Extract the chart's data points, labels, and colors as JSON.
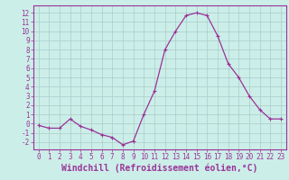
{
  "x": [
    0,
    1,
    2,
    3,
    4,
    5,
    6,
    7,
    8,
    9,
    10,
    11,
    12,
    13,
    14,
    15,
    16,
    17,
    18,
    19,
    20,
    21,
    22,
    23
  ],
  "y": [
    -0.2,
    -0.5,
    -0.5,
    0.5,
    -0.3,
    -0.7,
    -1.2,
    -1.5,
    -2.3,
    -1.9,
    1.0,
    3.5,
    8.0,
    10.0,
    11.7,
    12.0,
    11.7,
    9.5,
    6.5,
    5.0,
    3.0,
    1.5,
    0.5,
    0.5
  ],
  "line_color": "#993399",
  "marker": "+",
  "bg_color": "#cceee8",
  "grid_color": "#aacccc",
  "xlabel": "Windchill (Refroidissement éolien,°C)",
  "xlim": [
    -0.5,
    23.5
  ],
  "ylim": [
    -2.8,
    12.8
  ],
  "yticks": [
    -2,
    -1,
    0,
    1,
    2,
    3,
    4,
    5,
    6,
    7,
    8,
    9,
    10,
    11,
    12
  ],
  "xticks": [
    0,
    1,
    2,
    3,
    4,
    5,
    6,
    7,
    8,
    9,
    10,
    11,
    12,
    13,
    14,
    15,
    16,
    17,
    18,
    19,
    20,
    21,
    22,
    23
  ],
  "tick_color": "#993399",
  "axis_color": "#993399",
  "tick_fontsize": 5.5,
  "xlabel_fontsize": 7
}
